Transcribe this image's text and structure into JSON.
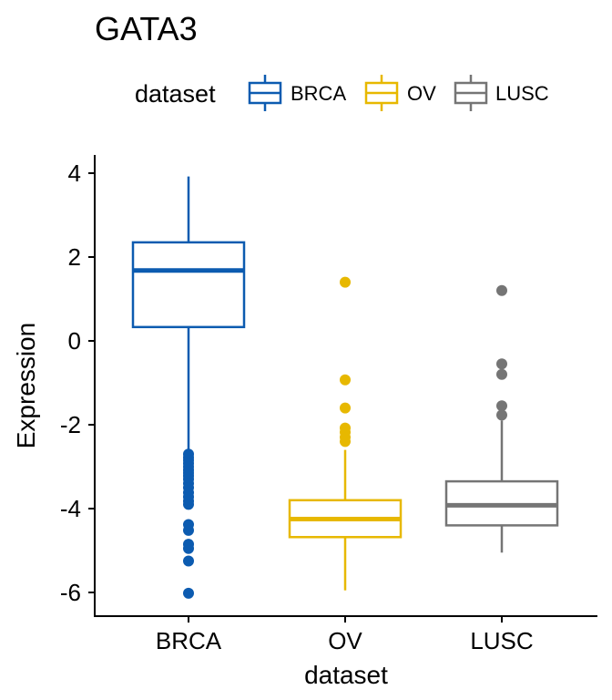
{
  "chart_data": {
    "type": "boxplot",
    "title": "GATA3",
    "xlabel": "dataset",
    "ylabel": "Expression",
    "ylim": [
      -6.5,
      4.3
    ],
    "yticks": [
      4,
      2,
      0,
      -2,
      -4,
      -6
    ],
    "ytick_labels": [
      "4",
      "2",
      "0",
      "-2",
      "-4",
      "-6"
    ],
    "grid": false,
    "legend": {
      "title": "dataset",
      "position": "top",
      "entries": [
        "BRCA",
        "OV",
        "LUSC"
      ]
    },
    "categories": [
      "BRCA",
      "OV",
      "LUSC"
    ],
    "series": [
      {
        "name": "BRCA",
        "color": "#0C5BB0",
        "whisker_low": -2.65,
        "q1": 0.33,
        "median": 1.68,
        "q3": 2.35,
        "whisker_high": 3.92,
        "outliers": [
          -2.7,
          -2.78,
          -2.85,
          -2.92,
          -3.0,
          -3.08,
          -3.15,
          -3.22,
          -3.3,
          -3.4,
          -3.5,
          -3.62,
          -3.72,
          -3.82,
          -3.9,
          -4.38,
          -4.52,
          -4.85,
          -4.95,
          -5.25,
          -6.02
        ]
      },
      {
        "name": "OV",
        "color": "#E7B800",
        "whisker_low": -5.95,
        "q1": -4.68,
        "median": -4.25,
        "q3": -3.8,
        "whisker_high": -2.6,
        "outliers": [
          1.4,
          -0.93,
          -1.6,
          -2.08,
          -2.18,
          -2.3,
          -2.4
        ]
      },
      {
        "name": "LUSC",
        "color": "#757575",
        "whisker_low": -5.05,
        "q1": -4.4,
        "median": -3.92,
        "q3": -3.35,
        "whisker_high": -1.9,
        "outliers": [
          1.2,
          -0.55,
          -0.8,
          -1.55,
          -1.77
        ]
      }
    ]
  }
}
